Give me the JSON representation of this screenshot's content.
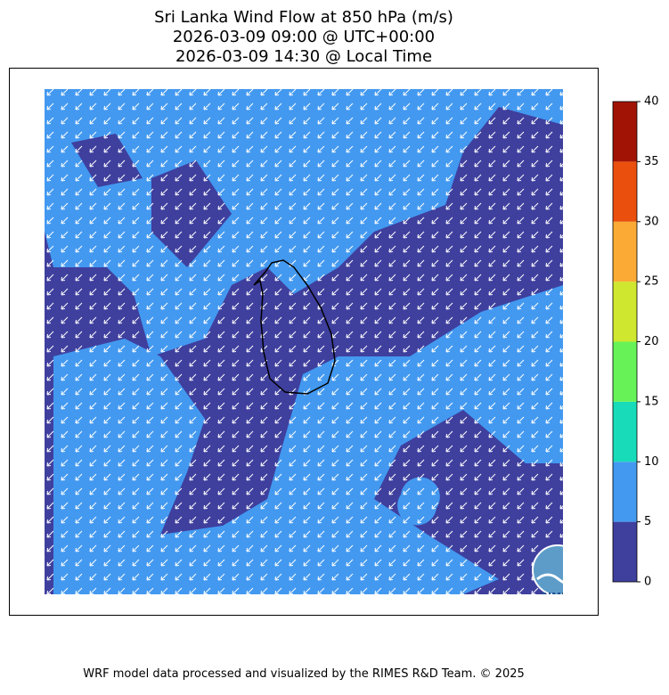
{
  "title": [
    "Sri Lanka Wind Flow at 850 hPa (m/s)",
    "2026-03-09 09:00 @ UTC+00:00",
    "2026-03-09 14:30 @ Local Time"
  ],
  "colorbar": {
    "bounds": [
      0,
      5,
      10,
      15,
      20,
      25,
      30,
      35,
      40
    ],
    "colors": [
      "#3f3f9e",
      "#4399f0",
      "#18dbb9",
      "#67f358",
      "#cfe72f",
      "#fbab35",
      "#ea4f0d",
      "#a11405"
    ]
  },
  "logo": "RIMES",
  "footer": "WRF model data processed and visualized by the RIMES R&D Team. © 2025"
}
